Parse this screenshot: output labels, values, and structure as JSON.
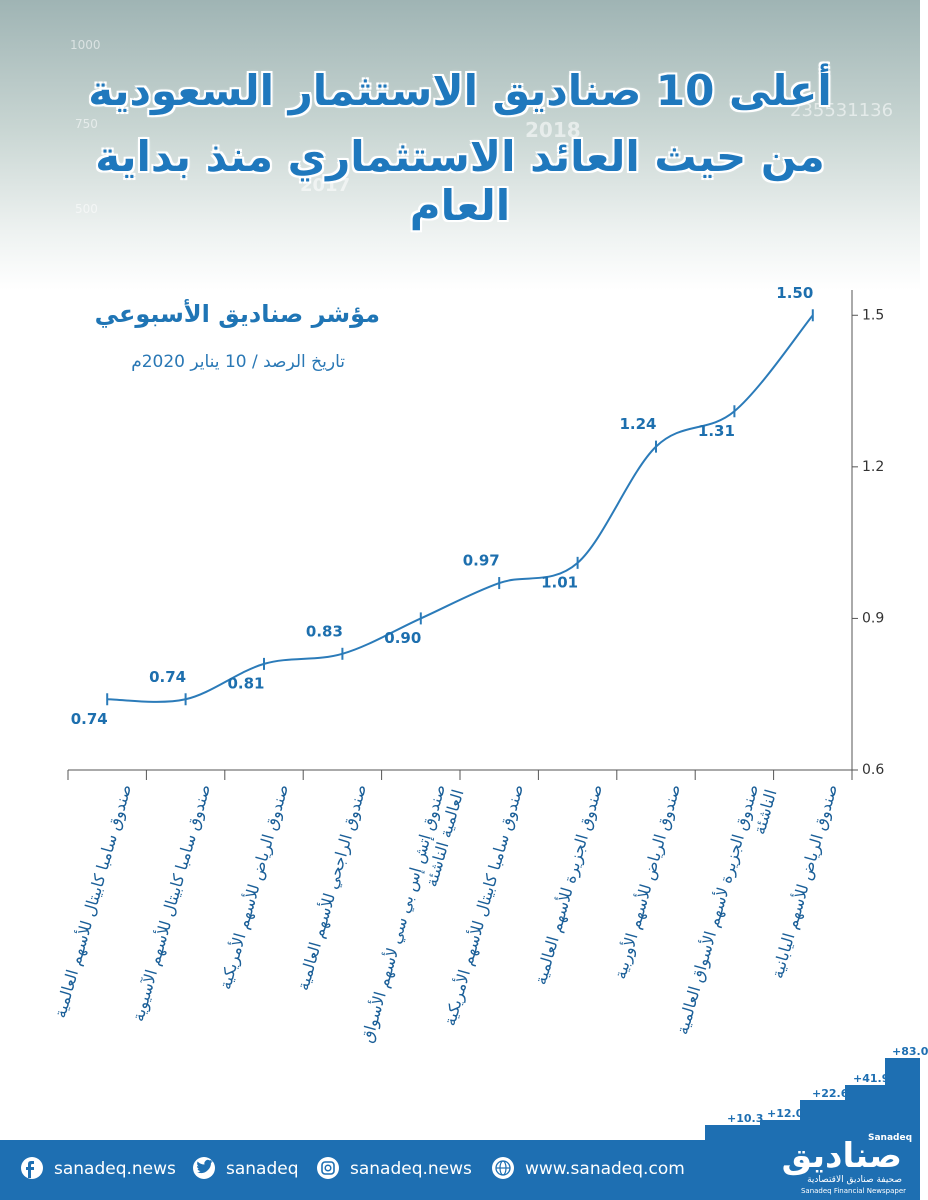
{
  "header": {
    "title_lines": [
      "أعلى 10 صناديق الاستثمار السعودية",
      "من حيث العائد الاستثماري منذ بداية العام"
    ],
    "background_labels": [
      "1000",
      "750",
      "500",
      "2018",
      "2017",
      "235531136"
    ]
  },
  "chart_data": {
    "type": "line",
    "title": "مؤشر صناديق الأسبوعي",
    "subtitle": "تاريخ الرصد / 10 يناير 2020م",
    "categories": [
      "صندوق سامبا كابيتال للأسهم العالمية",
      "صندوق سامبا كابيتال للأسهم الآسيوية",
      "صندوق الرياض للأسهم الأمريكية",
      "صندوق الراجحي للأسهم العالمية",
      "صندوق إتش إس بي سي لأسهم الأسواق العالمية الناشئة",
      "صندوق سامبا كابيتال للأسهم الأمريكية",
      "صندوق الجزيرة للأسهم العالمية",
      "صندوق الرياض للأسهم الأوربية",
      "صندوق الجزيرة لأسهم الأسواق العالمية الناشئة",
      "صندوق الرياض للأسهم اليابانية"
    ],
    "values": [
      0.74,
      0.74,
      0.81,
      0.83,
      0.9,
      0.97,
      1.01,
      1.24,
      1.31,
      1.5
    ],
    "value_labels": [
      "0.74",
      "0.74",
      "0.81",
      "0.83",
      "0.90",
      "0.97",
      "1.01",
      "1.24",
      "1.31",
      "1.50"
    ],
    "color": "#2b7bb9",
    "ylim": [
      0.6,
      1.55
    ],
    "yticks": [
      0.6,
      0.9,
      1.2,
      1.5
    ]
  },
  "footer": {
    "links": [
      "sanadeq.news",
      "sanadeq",
      "sanadeq.news",
      "www.sanadeq.com"
    ],
    "logo": {
      "name": "صناديق",
      "name_en": "Sanadeq",
      "tagline": "صحيفة صناديق الاقتصادية",
      "tagline_en": "Sanadeq Financial Newspaper"
    },
    "steps": [
      "+10.3",
      "+12.0",
      "+22.6",
      "+41.9",
      "+83.0"
    ]
  }
}
